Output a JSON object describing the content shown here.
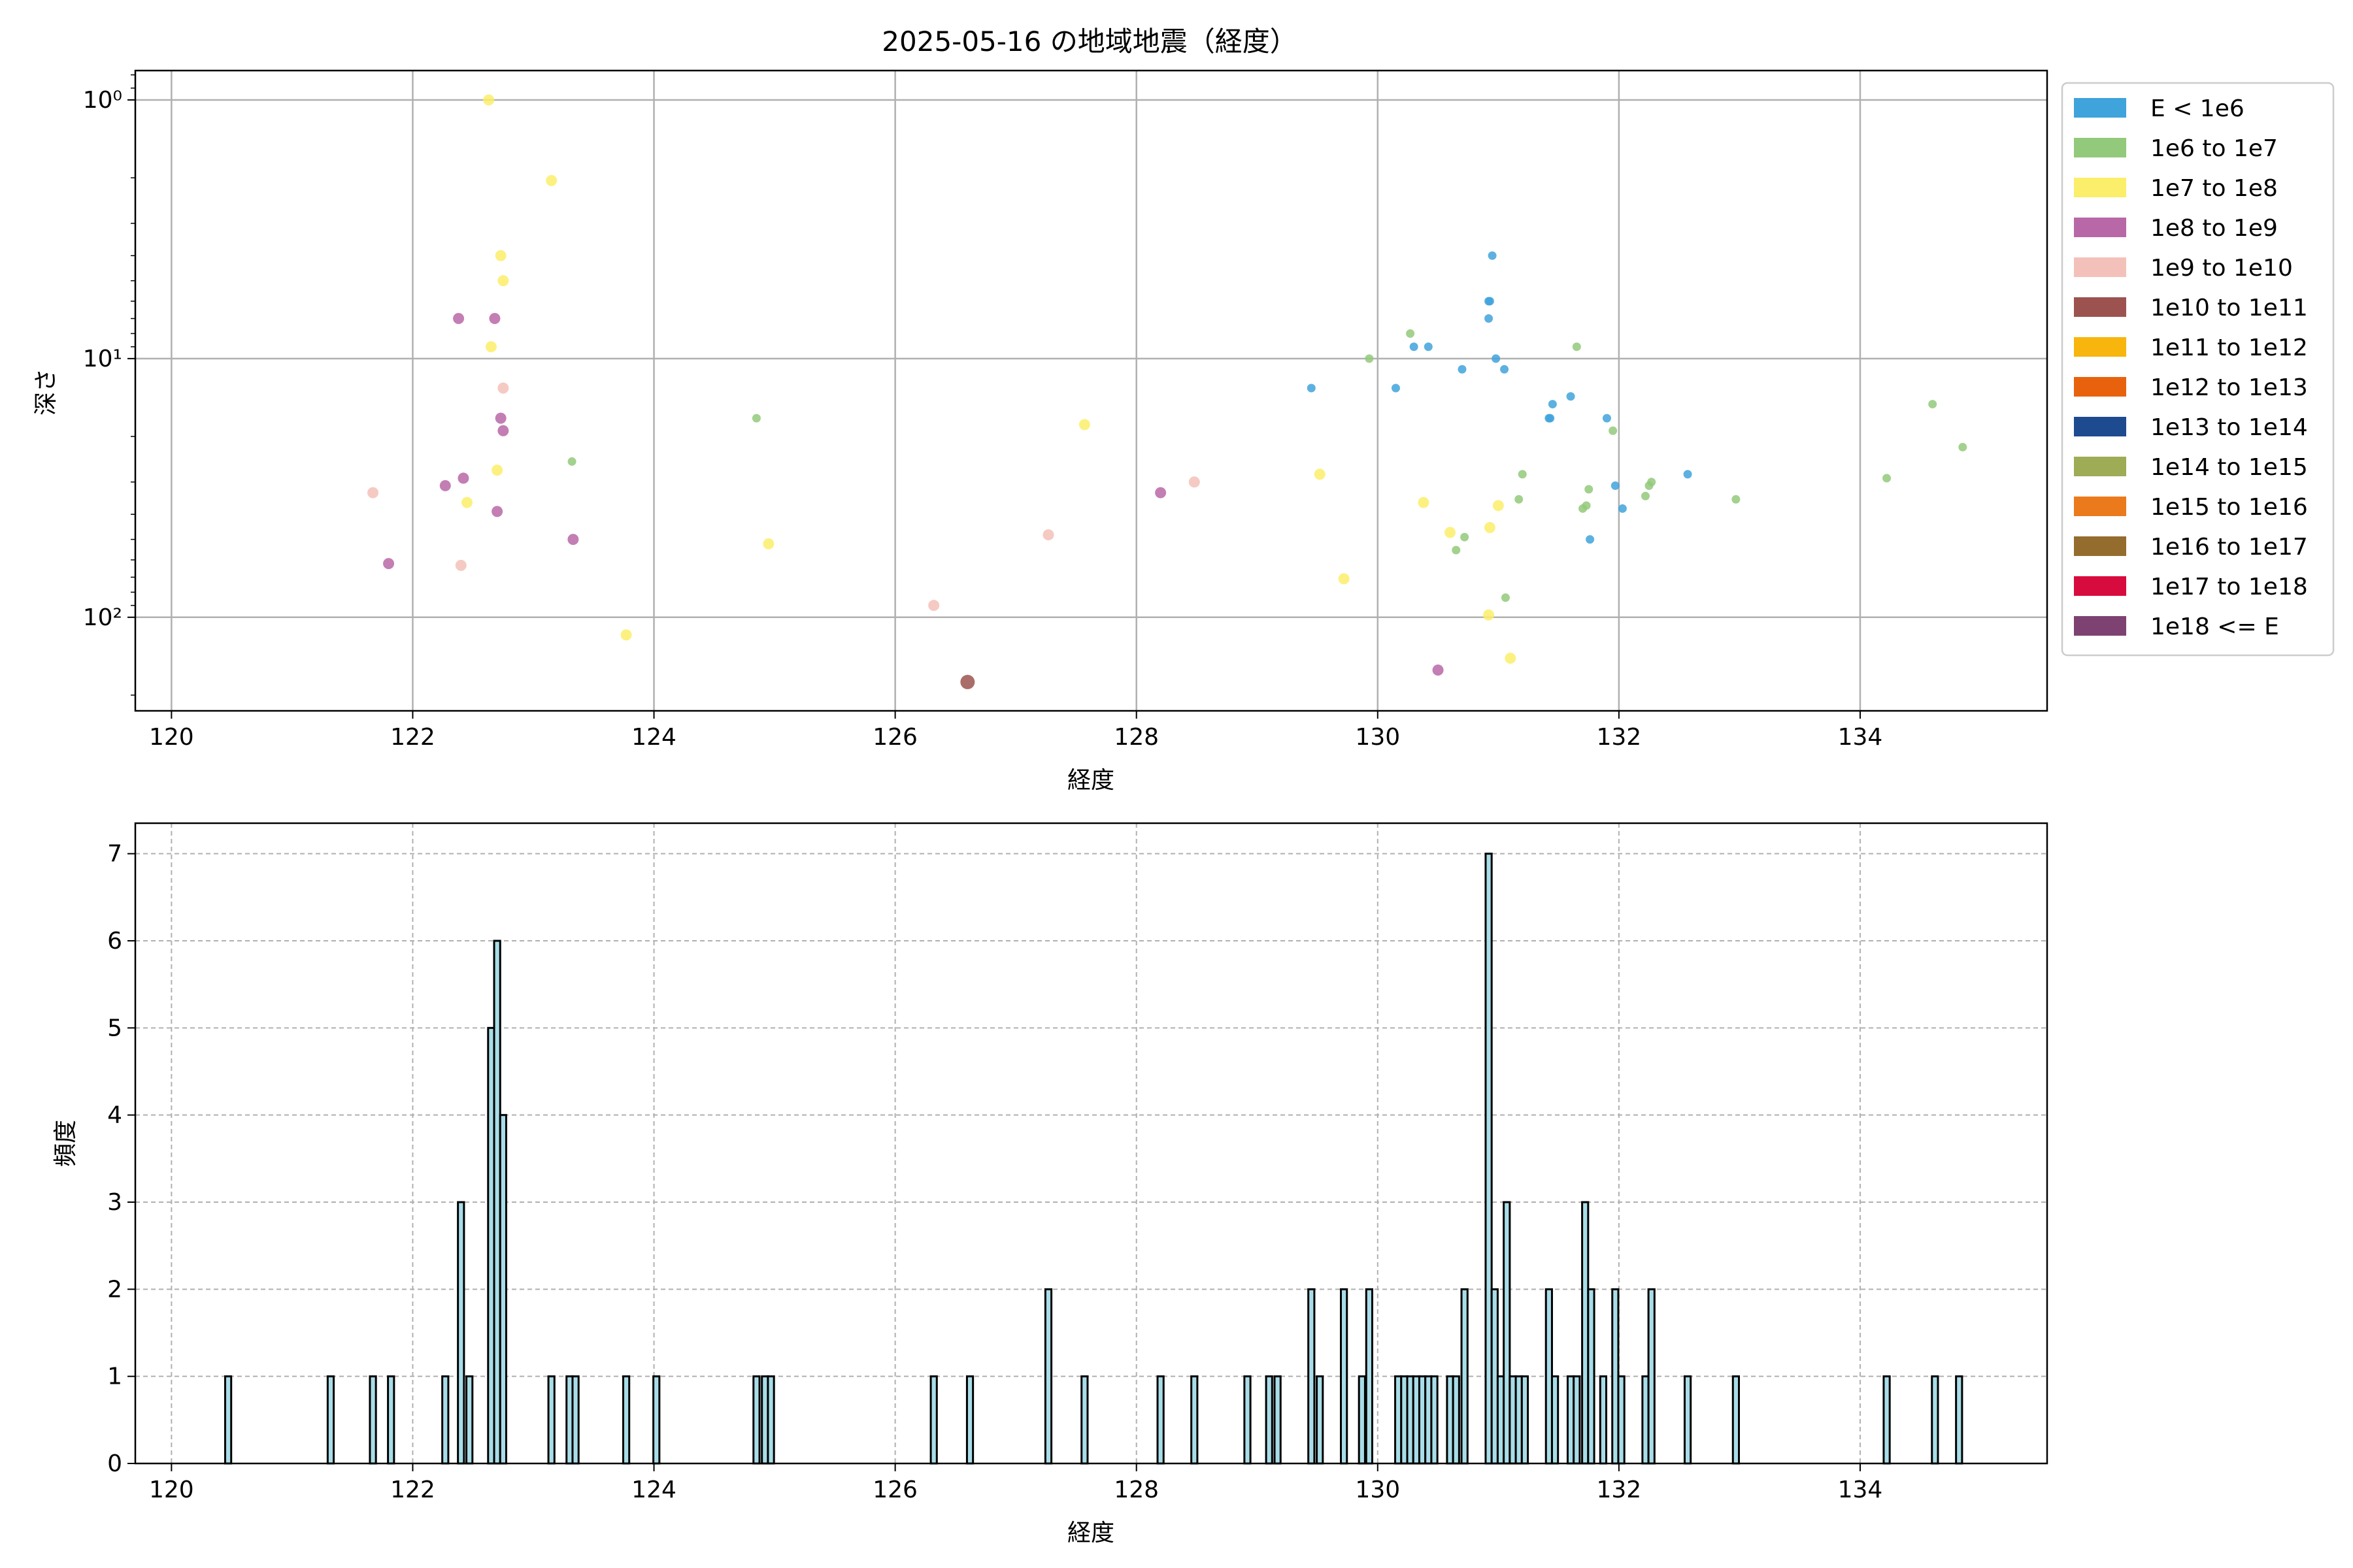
{
  "figure_title": "2025-05-16 の地域地震（経度）",
  "chart_data": [
    {
      "type": "scatter",
      "xlabel": "経度",
      "ylabel": "深さ",
      "xlim": [
        119.7,
        135.55
      ],
      "ylim": [
        230,
        0.77
      ],
      "y_scale": "log",
      "y_inverted": true,
      "grid": true,
      "legend_position": "right-outside-top",
      "xticks": [
        120,
        122,
        124,
        126,
        128,
        130,
        132,
        134
      ],
      "yticks": [
        {
          "value": 1,
          "label": "10⁰"
        },
        {
          "value": 10,
          "label": "10¹"
        },
        {
          "value": 100,
          "label": "10²"
        }
      ],
      "legend": [
        {
          "label": "E < 1e6",
          "color": "#3fa3dc"
        },
        {
          "label": "1e6 to 1e7",
          "color": "#93c97a"
        },
        {
          "label": "1e7 to 1e8",
          "color": "#fbee6a"
        },
        {
          "label": "1e8 to 1e9",
          "color": "#b867a7"
        },
        {
          "label": "1e9 to 1e10",
          "color": "#f3c1b9"
        },
        {
          "label": "1e10 to 1e11",
          "color": "#9c5350"
        },
        {
          "label": "1e11 to 1e12",
          "color": "#f7b50e"
        },
        {
          "label": "1e12 to 1e13",
          "color": "#e8620e"
        },
        {
          "label": "1e13 to 1e14",
          "color": "#1e4a8f"
        },
        {
          "label": "1e14 to 1e15",
          "color": "#9dac55"
        },
        {
          "label": "1e15 to 1e16",
          "color": "#ea7a1c"
        },
        {
          "label": "1e16 to 1e17",
          "color": "#946c2d"
        },
        {
          "label": "1e17 to 1e18",
          "color": "#d80b3e"
        },
        {
          "label": "1e18 <= E",
          "color": "#7d4271"
        }
      ],
      "series": [
        {
          "name": "E < 1e6",
          "color": "#3fa3dc",
          "points": [
            [
              129.45,
              13
            ],
            [
              130.15,
              13
            ],
            [
              130.3,
              9
            ],
            [
              130.42,
              9
            ],
            [
              130.7,
              11
            ],
            [
              130.92,
              6
            ],
            [
              130.93,
              6
            ],
            [
              130.95,
              4
            ],
            [
              130.92,
              7
            ],
            [
              130.98,
              10
            ],
            [
              131.05,
              11
            ],
            [
              131.42,
              17
            ],
            [
              131.43,
              17
            ],
            [
              131.45,
              15
            ],
            [
              131.6,
              14
            ],
            [
              131.9,
              17
            ],
            [
              131.97,
              31
            ],
            [
              132.03,
              38
            ],
            [
              131.76,
              50
            ],
            [
              132.57,
              28
            ]
          ]
        },
        {
          "name": "1e6 to 1e7",
          "color": "#93c97a",
          "points": [
            [
              124.85,
              17
            ],
            [
              123.32,
              25
            ],
            [
              129.93,
              10
            ],
            [
              130.27,
              8
            ],
            [
              130.65,
              55
            ],
            [
              130.72,
              49
            ],
            [
              131.06,
              84
            ],
            [
              131.17,
              35
            ],
            [
              131.2,
              28
            ],
            [
              131.7,
              38
            ],
            [
              131.73,
              37
            ],
            [
              131.75,
              32
            ],
            [
              131.95,
              19
            ],
            [
              132.22,
              34
            ],
            [
              132.25,
              31
            ],
            [
              132.27,
              30
            ],
            [
              132.97,
              35
            ],
            [
              134.22,
              29
            ],
            [
              134.6,
              15
            ],
            [
              134.85,
              22
            ],
            [
              131.65,
              9
            ]
          ]
        },
        {
          "name": "1e7 to 1e8",
          "color": "#fbee6a",
          "points": [
            [
              122.63,
              1.0
            ],
            [
              123.15,
              2.05
            ],
            [
              122.73,
              4
            ],
            [
              122.75,
              5
            ],
            [
              122.65,
              9
            ],
            [
              122.7,
              27
            ],
            [
              122.45,
              36
            ],
            [
              124.95,
              52
            ],
            [
              123.77,
              117
            ],
            [
              127.57,
              18
            ],
            [
              129.52,
              28
            ],
            [
              129.72,
              71
            ],
            [
              130.38,
              36
            ],
            [
              130.6,
              47
            ],
            [
              130.93,
              45
            ],
            [
              131.0,
              37
            ],
            [
              130.92,
              98
            ],
            [
              131.1,
              144
            ]
          ]
        },
        {
          "name": "1e8 to 1e9",
          "color": "#b867a7",
          "points": [
            [
              122.38,
              7
            ],
            [
              122.68,
              7
            ],
            [
              122.73,
              17
            ],
            [
              122.75,
              19
            ],
            [
              122.27,
              31
            ],
            [
              122.42,
              29
            ],
            [
              122.7,
              39
            ],
            [
              123.33,
              50
            ],
            [
              121.8,
              62
            ],
            [
              128.2,
              33
            ],
            [
              130.5,
              160
            ]
          ]
        },
        {
          "name": "1e9 to 1e10",
          "color": "#f3c1b9",
          "points": [
            [
              121.67,
              33
            ],
            [
              122.75,
              13
            ],
            [
              122.4,
              63
            ],
            [
              127.27,
              48
            ],
            [
              126.32,
              90
            ],
            [
              128.48,
              30
            ]
          ]
        },
        {
          "name": "1e10 to 1e11",
          "color": "#9c5350",
          "points": [
            [
              126.6,
              178
            ]
          ]
        }
      ]
    },
    {
      "type": "bar",
      "subtype": "histogram",
      "xlabel": "経度",
      "ylabel": "頻度",
      "xlim": [
        119.7,
        135.55
      ],
      "ylim": [
        0,
        7.35
      ],
      "grid": true,
      "bar_color": "#a8dde8",
      "edge_color": "#000000",
      "bin_width": 0.05,
      "xticks": [
        120,
        122,
        124,
        126,
        128,
        130,
        132,
        134
      ],
      "yticks": [
        0,
        1,
        2,
        3,
        4,
        5,
        6,
        7
      ],
      "bins": [
        [
          120.47,
          1
        ],
        [
          121.32,
          1
        ],
        [
          121.67,
          1
        ],
        [
          121.82,
          1
        ],
        [
          122.27,
          1
        ],
        [
          122.4,
          3
        ],
        [
          122.47,
          1
        ],
        [
          122.65,
          5
        ],
        [
          122.7,
          6
        ],
        [
          122.75,
          4
        ],
        [
          123.15,
          1
        ],
        [
          123.3,
          1
        ],
        [
          123.35,
          1
        ],
        [
          123.77,
          1
        ],
        [
          124.02,
          1
        ],
        [
          124.85,
          1
        ],
        [
          124.92,
          1
        ],
        [
          124.97,
          1
        ],
        [
          126.32,
          1
        ],
        [
          126.62,
          1
        ],
        [
          127.27,
          2
        ],
        [
          127.57,
          1
        ],
        [
          128.2,
          1
        ],
        [
          128.48,
          1
        ],
        [
          128.92,
          1
        ],
        [
          129.1,
          1
        ],
        [
          129.17,
          1
        ],
        [
          129.45,
          2
        ],
        [
          129.52,
          1
        ],
        [
          129.72,
          2
        ],
        [
          129.87,
          1
        ],
        [
          129.93,
          2
        ],
        [
          130.17,
          1
        ],
        [
          130.22,
          1
        ],
        [
          130.27,
          1
        ],
        [
          130.32,
          1
        ],
        [
          130.37,
          1
        ],
        [
          130.42,
          1
        ],
        [
          130.47,
          1
        ],
        [
          130.6,
          1
        ],
        [
          130.65,
          1
        ],
        [
          130.72,
          2
        ],
        [
          130.92,
          7
        ],
        [
          130.97,
          2
        ],
        [
          131.02,
          1
        ],
        [
          131.07,
          3
        ],
        [
          131.12,
          1
        ],
        [
          131.17,
          1
        ],
        [
          131.22,
          1
        ],
        [
          131.42,
          2
        ],
        [
          131.47,
          1
        ],
        [
          131.6,
          1
        ],
        [
          131.65,
          1
        ],
        [
          131.72,
          3
        ],
        [
          131.77,
          2
        ],
        [
          131.87,
          1
        ],
        [
          131.97,
          2
        ],
        [
          132.02,
          1
        ],
        [
          132.22,
          1
        ],
        [
          132.27,
          2
        ],
        [
          132.57,
          1
        ],
        [
          132.97,
          1
        ],
        [
          134.22,
          1
        ],
        [
          134.62,
          1
        ],
        [
          134.82,
          1
        ]
      ]
    }
  ]
}
